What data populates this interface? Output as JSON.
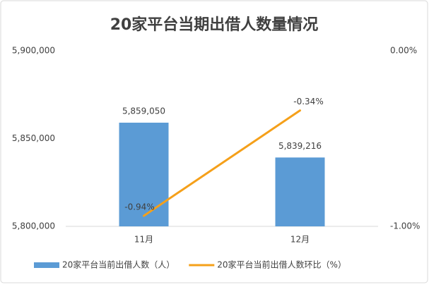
{
  "chart_data": {
    "type": "bar",
    "title": "20家平台当期出借人数量情况",
    "categories": [
      "11月",
      "12月"
    ],
    "series": [
      {
        "name": "20家平台当前出借人数（人）",
        "type": "bar",
        "color": "#5b9bd5",
        "values": [
          5859050,
          5839216
        ],
        "value_labels": [
          "5,859,050",
          "5,839,216"
        ]
      },
      {
        "name": "20家平台当前出借人数环比（%）",
        "type": "line",
        "axis": "y2",
        "color": "#f5a01a",
        "values": [
          -0.94,
          -0.34
        ],
        "value_labels": [
          "-0.94%",
          "-0.34%"
        ]
      }
    ],
    "ylim": [
      5800000,
      5900000
    ],
    "yticks": [
      {
        "value": 5800000,
        "label": "5,800,000"
      },
      {
        "value": 5850000,
        "label": "5,850,000"
      },
      {
        "value": 5900000,
        "label": "5,900,000"
      }
    ],
    "y2lim": [
      -1,
      0
    ],
    "y2ticks": [
      {
        "value": -1,
        "label": "-1.00%"
      },
      {
        "value": 0,
        "label": "0.00%"
      }
    ],
    "grid": false,
    "legend": "bottom"
  }
}
